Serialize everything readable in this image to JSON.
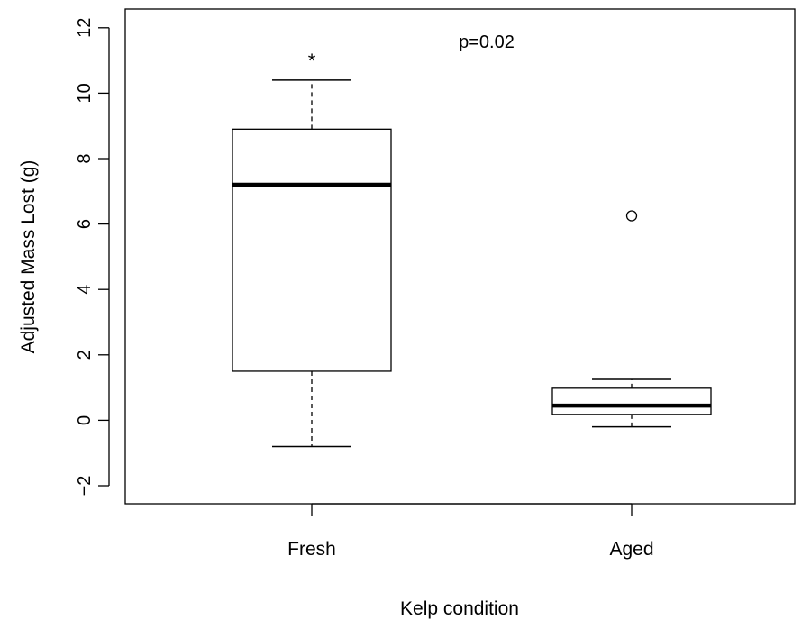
{
  "chart_data": {
    "type": "boxplot",
    "xlabel": "Kelp condition",
    "ylabel": "Adjusted Mass Lost (g)",
    "annotation": "p=0.02",
    "ylim": [
      -2.5,
      12.5
    ],
    "yticks": [
      -2,
      0,
      2,
      4,
      6,
      8,
      10,
      12
    ],
    "ytick_labels": [
      "−2",
      "0",
      "2",
      "4",
      "6",
      "8",
      "10",
      "12"
    ],
    "grid": false,
    "legend": "none",
    "categories": [
      "Fresh",
      "Aged"
    ],
    "boxes": [
      {
        "category": "Fresh",
        "whisker_low": -0.8,
        "q1": 1.5,
        "median": 7.2,
        "q3": 8.9,
        "whisker_high": 10.4,
        "outliers": [],
        "marker": "*",
        "marker_value": 11.0
      },
      {
        "category": "Aged",
        "whisker_low": -0.2,
        "q1": 0.18,
        "median": 0.45,
        "q3": 0.98,
        "whisker_high": 1.25,
        "outliers": [
          6.25
        ]
      }
    ]
  }
}
